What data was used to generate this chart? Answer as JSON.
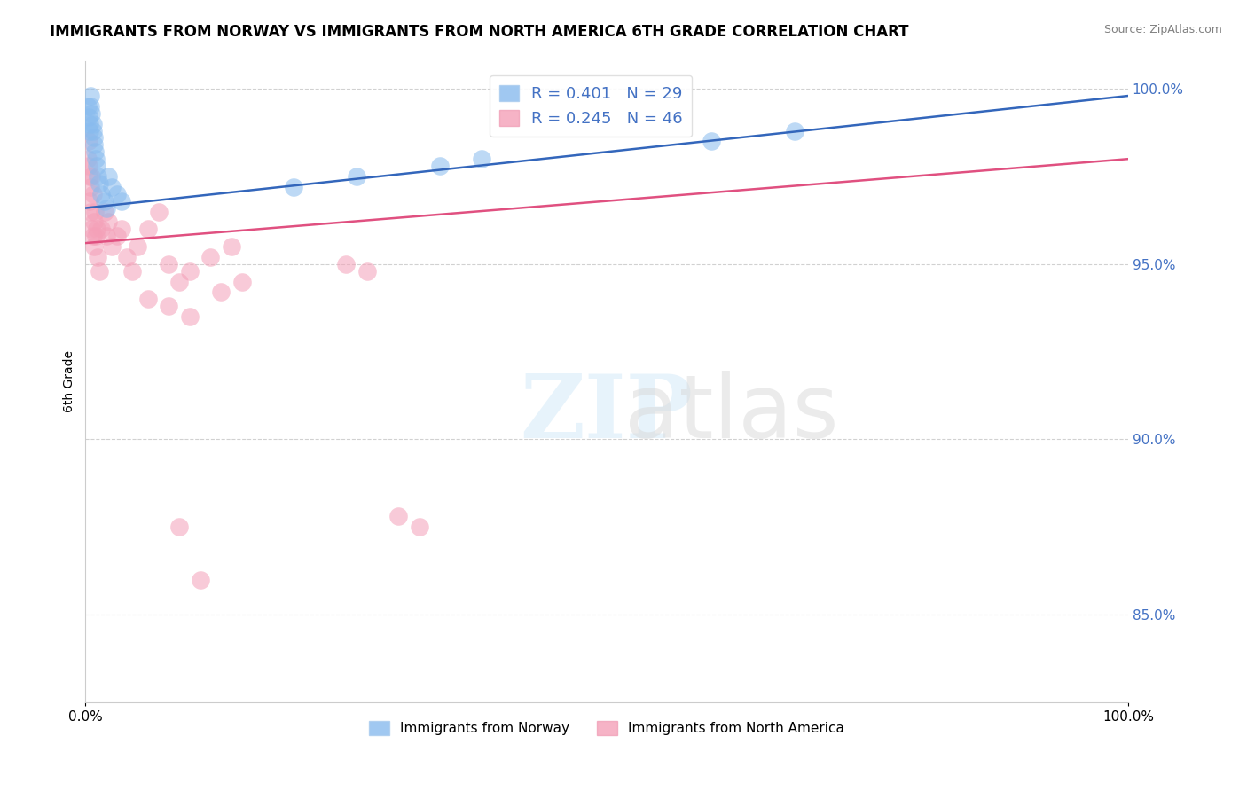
{
  "title": "IMMIGRANTS FROM NORWAY VS IMMIGRANTS FROM NORTH AMERICA 6TH GRADE CORRELATION CHART",
  "source": "Source: ZipAtlas.com",
  "ylabel": "6th Grade",
  "xlim": [
    0.0,
    1.0
  ],
  "ylim": [
    0.825,
    1.008
  ],
  "yticks": [
    0.85,
    0.9,
    0.95,
    1.0
  ],
  "ytick_labels": [
    "85.0%",
    "90.0%",
    "95.0%",
    "100.0%"
  ],
  "xticks": [
    0.0,
    1.0
  ],
  "xtick_labels": [
    "0.0%",
    "100.0%"
  ],
  "legend_labels": [
    "Immigrants from Norway",
    "Immigrants from North America"
  ],
  "R_norway": 0.401,
  "N_norway": 29,
  "R_north_america": 0.245,
  "N_north_america": 46,
  "norway_color": "#88bbee",
  "north_america_color": "#f4a0b8",
  "norway_line_color": "#3366bb",
  "north_america_line_color": "#e05080",
  "tick_color": "#4472c4",
  "background_color": "#ffffff",
  "norway_x": [
    0.002,
    0.003,
    0.004,
    0.004,
    0.005,
    0.005,
    0.006,
    0.007,
    0.007,
    0.008,
    0.008,
    0.009,
    0.01,
    0.011,
    0.012,
    0.013,
    0.015,
    0.018,
    0.02,
    0.022,
    0.025,
    0.03,
    0.035,
    0.2,
    0.26,
    0.34,
    0.38,
    0.6,
    0.68
  ],
  "norway_y": [
    0.995,
    0.992,
    0.99,
    0.988,
    0.998,
    0.995,
    0.993,
    0.99,
    0.988,
    0.986,
    0.984,
    0.982,
    0.98,
    0.978,
    0.975,
    0.973,
    0.97,
    0.968,
    0.966,
    0.975,
    0.972,
    0.97,
    0.968,
    0.972,
    0.975,
    0.978,
    0.98,
    0.985,
    0.988
  ],
  "north_america_x": [
    0.002,
    0.003,
    0.003,
    0.004,
    0.004,
    0.005,
    0.005,
    0.006,
    0.006,
    0.007,
    0.007,
    0.008,
    0.008,
    0.009,
    0.01,
    0.011,
    0.012,
    0.013,
    0.015,
    0.018,
    0.02,
    0.022,
    0.025,
    0.03,
    0.035,
    0.04,
    0.045,
    0.05,
    0.06,
    0.07,
    0.08,
    0.09,
    0.1,
    0.12,
    0.14,
    0.06,
    0.08,
    0.1,
    0.13,
    0.15,
    0.09,
    0.11,
    0.25,
    0.27,
    0.3,
    0.32
  ],
  "north_america_y": [
    0.98,
    0.978,
    0.985,
    0.975,
    0.968,
    0.965,
    0.972,
    0.96,
    0.975,
    0.958,
    0.97,
    0.962,
    0.955,
    0.965,
    0.958,
    0.96,
    0.952,
    0.948,
    0.96,
    0.965,
    0.958,
    0.962,
    0.955,
    0.958,
    0.96,
    0.952,
    0.948,
    0.955,
    0.96,
    0.965,
    0.95,
    0.945,
    0.948,
    0.952,
    0.955,
    0.94,
    0.938,
    0.935,
    0.942,
    0.945,
    0.875,
    0.86,
    0.95,
    0.948,
    0.878,
    0.875
  ],
  "norway_line_x0": 0.0,
  "norway_line_y0": 0.966,
  "norway_line_x1": 1.0,
  "norway_line_y1": 0.998,
  "na_line_x0": 0.0,
  "na_line_y0": 0.956,
  "na_line_x1": 1.0,
  "na_line_y1": 0.98
}
